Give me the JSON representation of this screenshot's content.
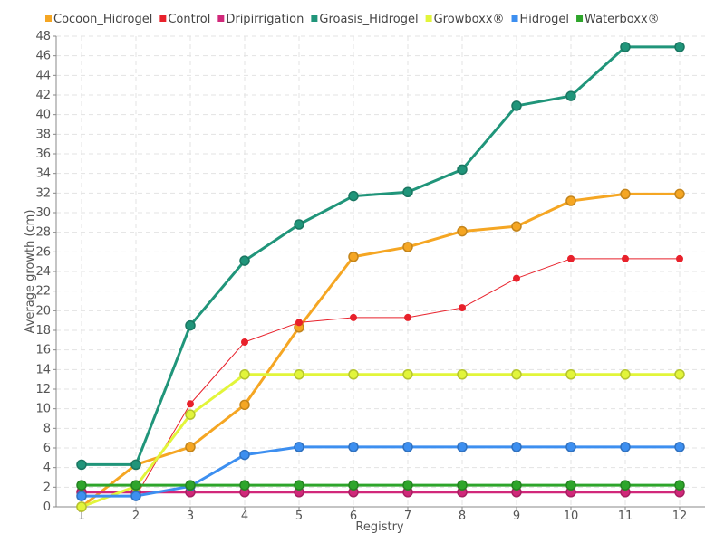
{
  "chart_data": {
    "type": "line",
    "title": "",
    "xlabel": "Registry",
    "ylabel": "Average growth (cm)",
    "categories": [
      "1",
      "2",
      "3",
      "4",
      "5",
      "6",
      "7",
      "8",
      "9",
      "10",
      "11",
      "12"
    ],
    "ylim": [
      0,
      48
    ],
    "ytick_step": 2,
    "grid": true,
    "legend_position": "top",
    "series": [
      {
        "name": "Cocoon_Hidrogel",
        "color": "#f5a623",
        "marker": true,
        "line_width": 3,
        "values": [
          0.0,
          4.3,
          6.1,
          10.4,
          18.3,
          25.5,
          26.5,
          28.1,
          28.6,
          31.2,
          31.9,
          31.9
        ]
      },
      {
        "name": "Control",
        "color": "#e8212b",
        "marker": true,
        "line_width": 1,
        "values": [
          1.1,
          1.1,
          10.5,
          16.8,
          18.8,
          19.3,
          19.3,
          20.3,
          23.3,
          25.3,
          25.3,
          25.3
        ]
      },
      {
        "name": "Dripirrigation",
        "color": "#d1287a",
        "marker": true,
        "line_width": 3,
        "values": [
          1.5,
          1.5,
          1.5,
          1.5,
          1.5,
          1.5,
          1.5,
          1.5,
          1.5,
          1.5,
          1.5,
          1.5
        ]
      },
      {
        "name": "Groasis_Hidrogel",
        "color": "#20957a",
        "marker": true,
        "line_width": 3,
        "values": [
          4.3,
          4.3,
          18.5,
          25.1,
          28.8,
          31.7,
          32.1,
          34.4,
          40.9,
          41.9,
          46.9,
          46.9
        ]
      },
      {
        "name": "Growboxx®",
        "color": "#e2f53a",
        "marker": true,
        "line_width": 3,
        "values": [
          0.0,
          2.1,
          9.4,
          13.5,
          13.5,
          13.5,
          13.5,
          13.5,
          13.5,
          13.5,
          13.5,
          13.5
        ]
      },
      {
        "name": "Hidrogel",
        "color": "#3d8ff0",
        "marker": true,
        "line_width": 3,
        "values": [
          1.1,
          1.1,
          2.1,
          5.3,
          6.1,
          6.1,
          6.1,
          6.1,
          6.1,
          6.1,
          6.1,
          6.1
        ]
      },
      {
        "name": "Waterboxx®",
        "color": "#2ea52b",
        "marker": true,
        "line_width": 3,
        "values": [
          2.2,
          2.2,
          2.2,
          2.2,
          2.2,
          2.2,
          2.2,
          2.2,
          2.2,
          2.2,
          2.2,
          2.2
        ]
      }
    ]
  }
}
